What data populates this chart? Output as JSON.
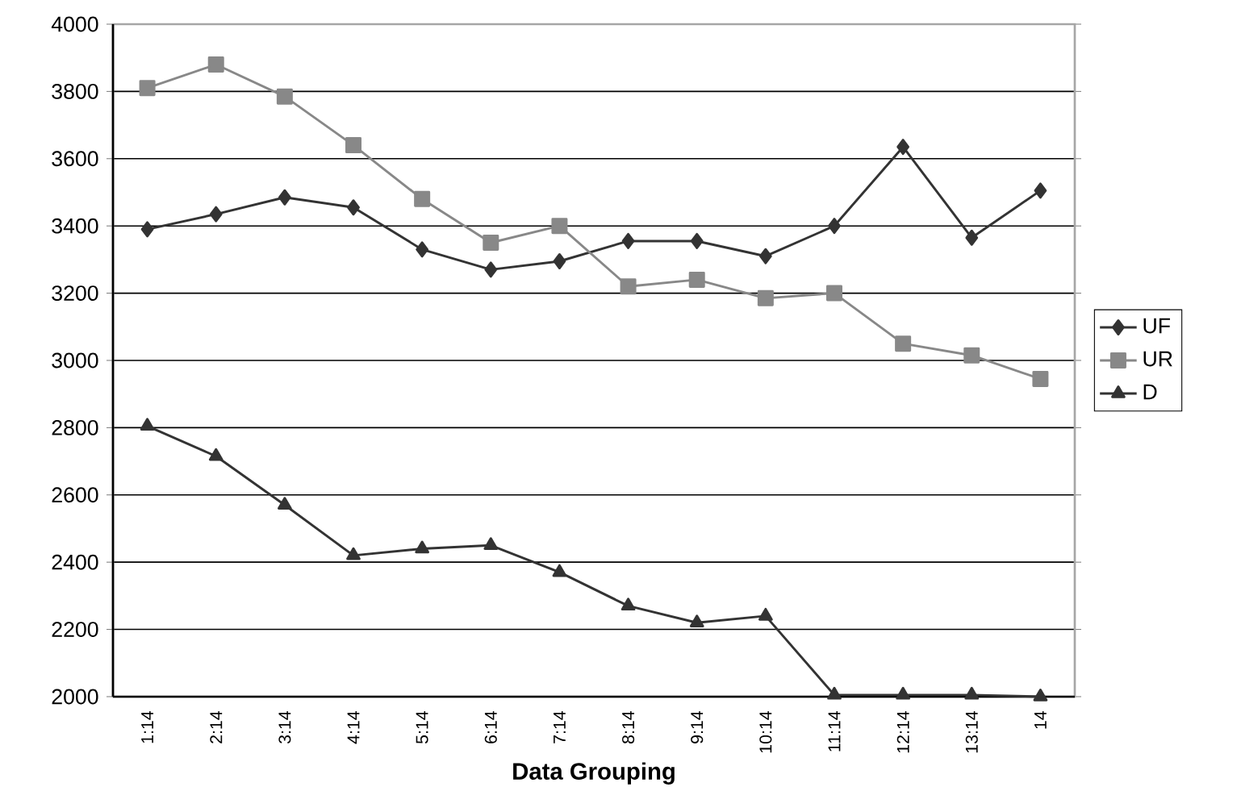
{
  "chart_data": {
    "type": "line",
    "xlabel": "Data Grouping",
    "categories": [
      "1:14",
      "2:14",
      "3:14",
      "4:14",
      "5:14",
      "6:14",
      "7:14",
      "8:14",
      "9:14",
      "10:14",
      "11:14",
      "12:14",
      "13:14",
      "14"
    ],
    "series": [
      {
        "name": "UF",
        "color": "#333333",
        "marker": "diamond",
        "values": [
          3390,
          3435,
          3485,
          3455,
          3330,
          3270,
          3295,
          3355,
          3355,
          3310,
          3400,
          3635,
          3365,
          3505
        ]
      },
      {
        "name": "UR",
        "color": "#888888",
        "marker": "square",
        "values": [
          3810,
          3880,
          3785,
          3640,
          3480,
          3350,
          3400,
          3220,
          3240,
          3185,
          3200,
          3050,
          3015,
          2945
        ]
      },
      {
        "name": "D",
        "color": "#333333",
        "marker": "triangle",
        "values": [
          2805,
          2715,
          2570,
          2420,
          2440,
          2450,
          2370,
          2270,
          2220,
          2240,
          2005,
          2005,
          2005,
          2000
        ]
      }
    ],
    "ylim": [
      2000,
      4000
    ],
    "yticks": [
      2000,
      2200,
      2400,
      2600,
      2800,
      3000,
      3200,
      3400,
      3600,
      3800,
      4000
    ],
    "grid": "y",
    "legend": "right",
    "line_style": "solid"
  }
}
